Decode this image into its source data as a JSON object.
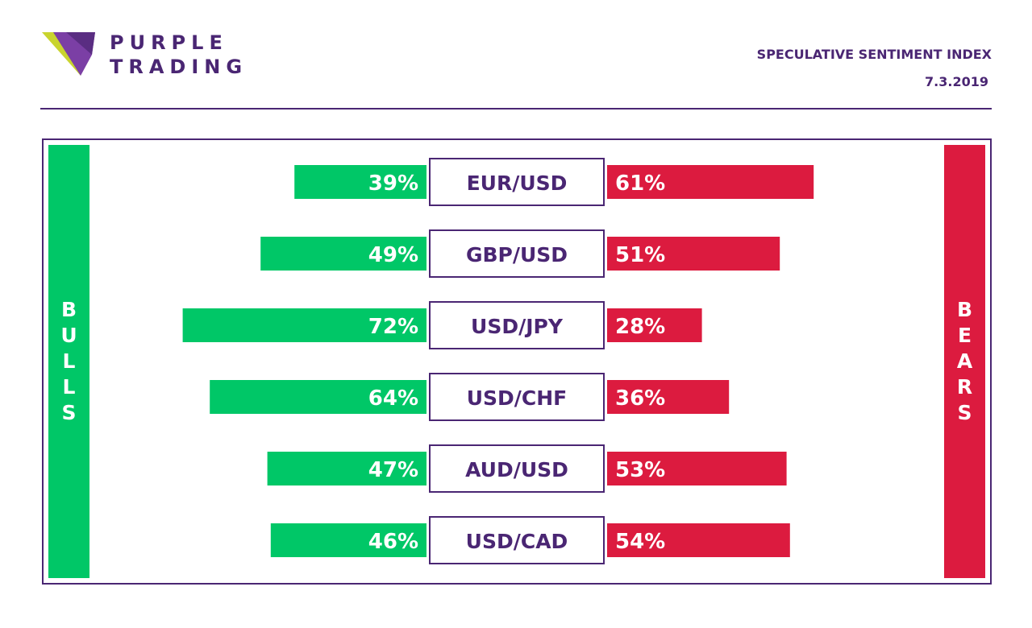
{
  "brand": {
    "line1": "PURPLE",
    "line2": "TRADING"
  },
  "header": {
    "title": "SPECULATIVE SENTIMENT INDEX",
    "date": "7.3.2019"
  },
  "side_labels": {
    "bulls": [
      "B",
      "U",
      "L",
      "L",
      "S"
    ],
    "bears": [
      "B",
      "E",
      "A",
      "R",
      "S"
    ]
  },
  "colors": {
    "bulls": "#00c767",
    "bears": "#dc1b3f",
    "brand": "#4a2673"
  },
  "chart_data": {
    "type": "bar",
    "categories": [
      "EUR/USD",
      "GBP/USD",
      "USD/JPY",
      "USD/CHF",
      "AUD/USD",
      "USD/CAD"
    ],
    "bulls": [
      39,
      49,
      72,
      64,
      47,
      46
    ],
    "bears": [
      61,
      51,
      28,
      36,
      53,
      54
    ],
    "bull_labels": [
      "39%",
      "49%",
      "72%",
      "64%",
      "47%",
      "46%"
    ],
    "bear_labels": [
      "61%",
      "51%",
      "28%",
      "36%",
      "53%",
      "54%"
    ]
  }
}
